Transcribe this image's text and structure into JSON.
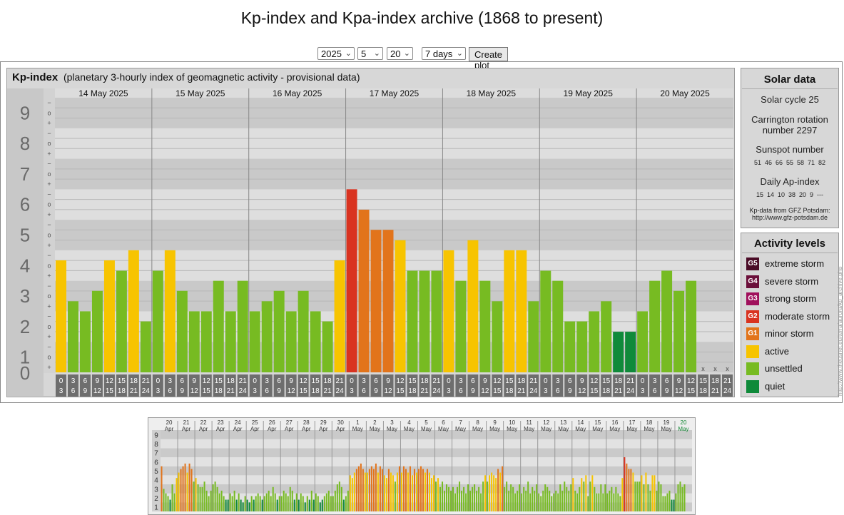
{
  "page": {
    "title": "Kp-index and Kpa-index archive (1868 to present)"
  },
  "controls": {
    "year": "2025",
    "month": "5",
    "day": "20",
    "span": "7 days",
    "create_label": "Create plot"
  },
  "kp_panel": {
    "label": "Kp-index",
    "subtitle": "(planetary 3-hourly index of geomagnetic activity - provisional data)"
  },
  "solar": {
    "title": "Solar data",
    "cycle": "Solar cycle 25",
    "carrington": "Carrington rotation number 2297",
    "sunspot_label": "Sunspot number",
    "sunspot_values": "51  46  66  55  58  71  82",
    "ap_label": "Daily Ap-index",
    "ap_values": "15  14  10  38  20  9  ---",
    "source_line1": "Kp-data from GFZ Potsdam:",
    "source_line2": "http://www.gfz-potsdam.de"
  },
  "activity": {
    "title": "Activity levels",
    "levels": [
      {
        "badge": "G5",
        "label": "extreme storm",
        "color": "#4a0b26"
      },
      {
        "badge": "G4",
        "label": "severe storm",
        "color": "#6b0f3a"
      },
      {
        "badge": "G3",
        "label": "strong storm",
        "color": "#a0105c"
      },
      {
        "badge": "G2",
        "label": "moderate storm",
        "color": "#d93320"
      },
      {
        "badge": "G1",
        "label": "minor storm",
        "color": "#e2741b"
      },
      {
        "badge": "",
        "label": "active",
        "color": "#f7c400"
      },
      {
        "badge": "",
        "label": "unsettled",
        "color": "#77bb22"
      },
      {
        "badge": "",
        "label": "quiet",
        "color": "#0f8a3a"
      }
    ]
  },
  "watermark": "http://www.theusnet.eu/terra/aurora/kp_archive.php",
  "chart_data": [
    {
      "type": "bar",
      "title": "Kp-index",
      "ylim": [
        0,
        9
      ],
      "y_ticks": [
        "0",
        "1",
        "2",
        "3",
        "4",
        "5",
        "6",
        "7",
        "8",
        "9"
      ],
      "sub_ticks": [
        "+",
        "o",
        "−"
      ],
      "hour_start": [
        "0",
        "3",
        "6",
        "9",
        "12",
        "15",
        "18",
        "21"
      ],
      "hour_end": [
        "3",
        "6",
        "9",
        "12",
        "15",
        "18",
        "21",
        "24"
      ],
      "missing_marker": "x",
      "days": [
        {
          "date": "14 May 2025",
          "values": [
            3.67,
            2.33,
            2.0,
            2.67,
            3.67,
            3.33,
            4.0,
            1.67
          ]
        },
        {
          "date": "15 May 2025",
          "values": [
            3.33,
            4.0,
            2.67,
            2.0,
            2.0,
            3.0,
            2.0,
            3.0
          ]
        },
        {
          "date": "16 May 2025",
          "values": [
            2.0,
            2.33,
            2.67,
            2.0,
            2.67,
            2.0,
            1.67,
            3.67
          ]
        },
        {
          "date": "17 May 2025",
          "values": [
            6.0,
            5.33,
            4.67,
            4.67,
            4.33,
            3.33,
            3.33,
            3.33
          ]
        },
        {
          "date": "18 May 2025",
          "values": [
            4.0,
            3.0,
            4.33,
            3.0,
            2.33,
            4.0,
            4.0,
            2.33
          ]
        },
        {
          "date": "19 May 2025",
          "values": [
            3.33,
            3.0,
            1.67,
            1.67,
            2.0,
            2.33,
            1.33,
            1.33
          ]
        },
        {
          "date": "20 May 2025",
          "values": [
            2.0,
            3.0,
            3.33,
            2.67,
            3.0,
            null,
            null,
            null
          ]
        }
      ],
      "color_thresholds": {
        "unsettled_max": 3.33,
        "active_max": 4.33,
        "g1_max": 5.33,
        "g2_max": 6.33,
        "quiet_max": 1.33
      }
    },
    {
      "type": "bar",
      "title": "",
      "ylim": [
        0,
        9
      ],
      "y_ticks": [
        "1",
        "2",
        "3",
        "4",
        "5",
        "6",
        "7",
        "8",
        "9"
      ],
      "days": [
        {
          "d": "20",
          "m": "Apr"
        },
        {
          "d": "21",
          "m": "Apr"
        },
        {
          "d": "22",
          "m": "Apr"
        },
        {
          "d": "23",
          "m": "Apr"
        },
        {
          "d": "24",
          "m": "Apr"
        },
        {
          "d": "25",
          "m": "Apr"
        },
        {
          "d": "26",
          "m": "Apr"
        },
        {
          "d": "27",
          "m": "Apr"
        },
        {
          "d": "28",
          "m": "Apr"
        },
        {
          "d": "29",
          "m": "Apr"
        },
        {
          "d": "30",
          "m": "Apr"
        },
        {
          "d": "1",
          "m": "May"
        },
        {
          "d": "2",
          "m": "May"
        },
        {
          "d": "3",
          "m": "May"
        },
        {
          "d": "4",
          "m": "May"
        },
        {
          "d": "5",
          "m": "May"
        },
        {
          "d": "6",
          "m": "May"
        },
        {
          "d": "7",
          "m": "May"
        },
        {
          "d": "8",
          "m": "May"
        },
        {
          "d": "9",
          "m": "May"
        },
        {
          "d": "10",
          "m": "May"
        },
        {
          "d": "11",
          "m": "May"
        },
        {
          "d": "12",
          "m": "May"
        },
        {
          "d": "13",
          "m": "May"
        },
        {
          "d": "14",
          "m": "May"
        },
        {
          "d": "15",
          "m": "May"
        },
        {
          "d": "16",
          "m": "May"
        },
        {
          "d": "17",
          "m": "May"
        },
        {
          "d": "18",
          "m": "May"
        },
        {
          "d": "19",
          "m": "May"
        },
        {
          "d": "20",
          "m": "May"
        }
      ],
      "values": [
        5.0,
        2.5,
        2.0,
        1.7,
        1.3,
        3.0,
        2.0,
        3.7,
        4.3,
        4.7,
        5.0,
        5.3,
        4.3,
        5.3,
        4.7,
        3.3,
        3.7,
        3.0,
        2.7,
        2.7,
        3.3,
        2.3,
        1.7,
        2.3,
        3.0,
        3.3,
        2.7,
        2.0,
        2.3,
        1.7,
        1.3,
        1.3,
        2.0,
        1.7,
        2.3,
        1.3,
        2.0,
        1.3,
        1.0,
        1.7,
        1.3,
        1.0,
        1.7,
        1.3,
        1.7,
        2.0,
        1.7,
        1.3,
        1.7,
        2.0,
        2.3,
        1.7,
        2.7,
        2.0,
        1.3,
        1.7,
        1.7,
        2.3,
        2.0,
        1.7,
        2.7,
        2.3,
        1.3,
        2.0,
        1.3,
        2.0,
        1.7,
        1.0,
        1.7,
        1.3,
        2.3,
        1.3,
        2.0,
        1.7,
        1.0,
        1.3,
        1.7,
        2.0,
        2.3,
        1.7,
        1.7,
        2.3,
        3.0,
        3.3,
        2.7,
        1.3,
        1.7,
        2.3,
        4.0,
        3.7,
        4.3,
        4.7,
        5.0,
        5.3,
        4.7,
        4.3,
        4.3,
        4.7,
        5.0,
        4.7,
        5.3,
        4.3,
        5.0,
        4.7,
        4.0,
        3.7,
        4.7,
        4.3,
        4.0,
        3.3,
        4.3,
        5.0,
        4.3,
        5.0,
        4.7,
        4.3,
        5.0,
        4.0,
        4.7,
        4.3,
        4.7,
        5.0,
        4.7,
        4.3,
        4.7,
        4.3,
        3.7,
        4.0,
        3.3,
        3.7,
        2.7,
        3.3,
        2.3,
        3.0,
        2.7,
        2.3,
        2.7,
        2.0,
        2.7,
        3.3,
        2.3,
        2.7,
        2.0,
        3.0,
        2.3,
        2.7,
        3.0,
        2.3,
        2.7,
        2.0,
        3.3,
        4.0,
        3.3,
        4.0,
        4.3,
        4.0,
        3.7,
        4.7,
        4.3,
        5.0,
        2.7,
        3.3,
        2.3,
        3.0,
        2.7,
        2.0,
        2.3,
        3.0,
        2.0,
        2.7,
        2.3,
        3.3,
        2.0,
        2.7,
        2.3,
        3.0,
        2.0,
        1.7,
        2.3,
        3.0,
        2.7,
        2.3,
        1.7,
        2.0,
        2.3,
        2.0,
        3.0,
        2.3,
        3.3,
        2.7,
        2.3,
        3.0,
        3.7,
        2.3,
        2.0,
        2.7,
        3.7,
        3.3,
        4.0,
        1.7,
        3.3,
        4.0,
        2.7,
        2.0,
        2.0,
        3.0,
        2.0,
        3.0,
        2.0,
        2.3,
        2.7,
        2.0,
        2.7,
        2.0,
        1.7,
        3.7,
        6.0,
        5.3,
        4.7,
        4.7,
        4.3,
        3.3,
        3.3,
        3.3,
        4.0,
        3.0,
        4.3,
        3.0,
        2.3,
        4.0,
        4.0,
        2.3,
        3.3,
        3.0,
        1.7,
        1.7,
        2.0,
        2.3,
        1.3,
        1.3,
        2.0,
        3.0,
        3.3,
        2.7,
        3.0
      ]
    }
  ]
}
